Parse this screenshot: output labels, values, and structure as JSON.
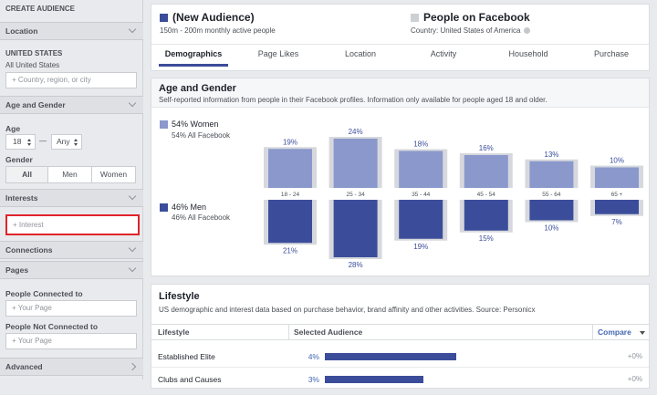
{
  "sidebar": {
    "title": "CREATE AUDIENCE",
    "location": {
      "header": "Location",
      "country": "UNITED STATES",
      "scope": "All United States",
      "placeholder": "+ Country, region, or city"
    },
    "age_gender": {
      "header": "Age and Gender",
      "age_label": "Age",
      "age_min": "18",
      "dash": "—",
      "age_max": "Any",
      "gender_label": "Gender",
      "genders": [
        "All",
        "Men",
        "Women"
      ]
    },
    "interests": {
      "header": "Interests",
      "placeholder": "+ Interest"
    },
    "connections": {
      "header": "Connections"
    },
    "pages": {
      "header": "Pages",
      "connected_label": "People Connected to",
      "connected_placeholder": "+ Your Page",
      "not_connected_label": "People Not Connected to",
      "not_connected_placeholder": "+ Your Page"
    },
    "advanced": {
      "header": "Advanced"
    }
  },
  "header": {
    "audience": "(New Audience)",
    "audience_size": "150m - 200m monthly active people",
    "compare": "People on Facebook",
    "compare_scope": "Country: United States of America",
    "tabs": [
      "Demographics",
      "Page Likes",
      "Location",
      "Activity",
      "Household",
      "Purchase"
    ]
  },
  "age_gender": {
    "title": "Age and Gender",
    "subtitle": "Self-reported information from people in their Facebook profiles. Information only available for people aged 18 and older.",
    "women_legend": "54% Women",
    "women_all": "54% All Facebook",
    "men_legend": "46% Men",
    "men_all": "46% All Facebook",
    "age_groups": [
      "18 - 24",
      "25 - 34",
      "35 - 44",
      "45 - 54",
      "55 - 64",
      "65 +"
    ],
    "women": {
      "values": [
        19,
        24,
        18,
        16,
        13,
        10
      ],
      "value_labels": [
        "19%",
        "24%",
        "18%",
        "16%",
        "13%",
        "10%"
      ]
    },
    "men": {
      "values": [
        21,
        28,
        19,
        15,
        10,
        7
      ],
      "value_labels": [
        "21%",
        "28%",
        "19%",
        "15%",
        "10%",
        "7%"
      ]
    }
  },
  "lifestyle": {
    "title": "Lifestyle",
    "subtitle": "US demographic and interest data based on purchase behavior, brand affinity and other activities. Source: Personicx",
    "columns": [
      "Lifestyle",
      "Selected Audience",
      "Compare"
    ],
    "rows": [
      {
        "name": "Established Elite",
        "value": 4,
        "value_label": "4%",
        "compare": "+0%"
      },
      {
        "name": "Clubs and Causes",
        "value": 3,
        "value_label": "3%",
        "compare": "+0%"
      }
    ]
  }
}
